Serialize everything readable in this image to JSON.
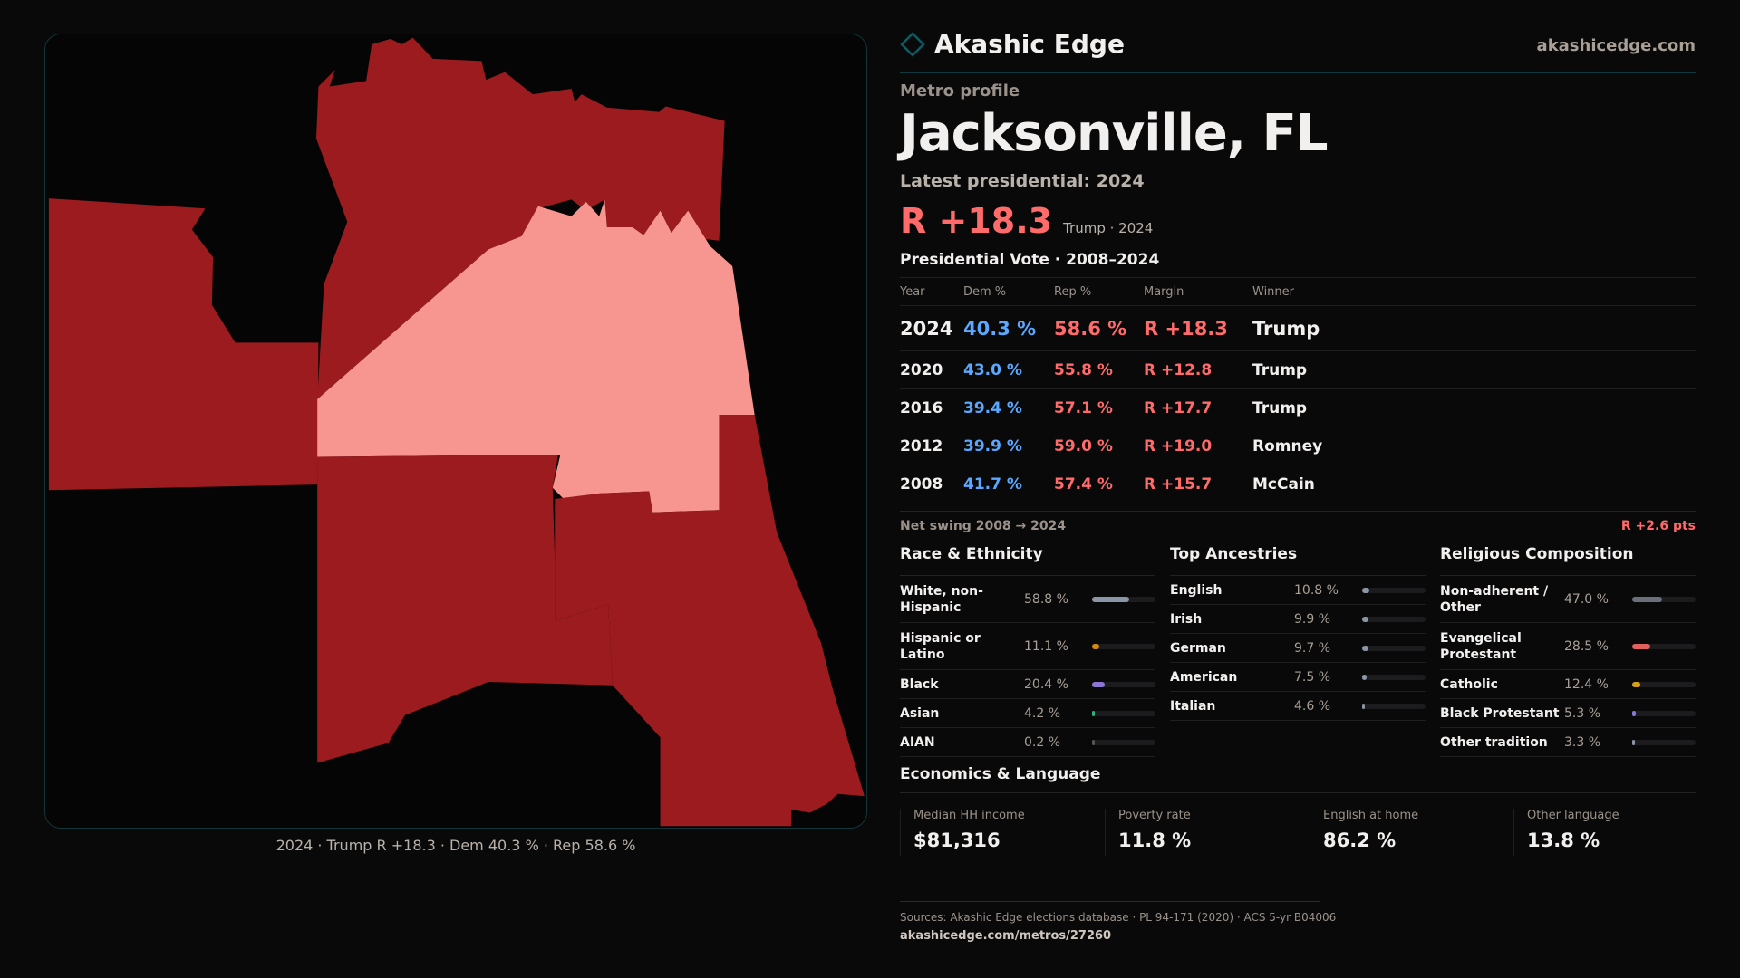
{
  "brand": {
    "name": "Akashic Edge",
    "site": "akashicedge.com"
  },
  "profile": {
    "eyebrow": "Metro profile",
    "title": "Jacksonville, FL",
    "latest_label": "Latest presidential: 2024",
    "margin": "R +18.3",
    "margin_sub": "Trump · 2024"
  },
  "map": {
    "caption": "2024 · Trump R +18.3 · Dem 40.3 % · Rep 58.6 %",
    "colors": {
      "strong_rep": "#9b1b1e",
      "lean_rep": "#f79591"
    }
  },
  "vote_table": {
    "title": "Presidential Vote · 2008–2024",
    "headers": [
      "Year",
      "Dem %",
      "Rep %",
      "Margin",
      "Winner"
    ],
    "rows": [
      {
        "year": "2024",
        "dem": "40.3 %",
        "rep": "58.6 %",
        "margin": "R +18.3",
        "winner": "Trump"
      },
      {
        "year": "2020",
        "dem": "43.0 %",
        "rep": "55.8 %",
        "margin": "R +12.8",
        "winner": "Trump"
      },
      {
        "year": "2016",
        "dem": "39.4 %",
        "rep": "57.1 %",
        "margin": "R +17.7",
        "winner": "Trump"
      },
      {
        "year": "2012",
        "dem": "39.9 %",
        "rep": "59.0 %",
        "margin": "R +19.0",
        "winner": "Romney"
      },
      {
        "year": "2008",
        "dem": "41.7 %",
        "rep": "57.4 %",
        "margin": "R +15.7",
        "winner": "McCain"
      }
    ],
    "swing_label": "Net swing 2008 → 2024",
    "swing_value": "R +2.6 pts"
  },
  "race": {
    "title": "Race & Ethnicity",
    "items": [
      {
        "label": "White, non-Hispanic",
        "value": "58.8 %",
        "pct": 58.8,
        "color": "#8a95a8"
      },
      {
        "label": "Hispanic or Latino",
        "value": "11.1 %",
        "pct": 11.1,
        "color": "#d4880f"
      },
      {
        "label": "Black",
        "value": "20.4 %",
        "pct": 20.4,
        "color": "#8b76d6"
      },
      {
        "label": "Asian",
        "value": "4.2 %",
        "pct": 4.2,
        "color": "#2fb37a"
      },
      {
        "label": "AIAN",
        "value": "0.2 %",
        "pct": 0.2,
        "color": "#555"
      }
    ]
  },
  "ancestry": {
    "title": "Top Ancestries",
    "items": [
      {
        "label": "English",
        "value": "10.8 %",
        "pct": 10.8,
        "color": "#8a95a8"
      },
      {
        "label": "Irish",
        "value": "9.9 %",
        "pct": 9.9,
        "color": "#8a95a8"
      },
      {
        "label": "German",
        "value": "9.7 %",
        "pct": 9.7,
        "color": "#8a95a8"
      },
      {
        "label": "American",
        "value": "7.5 %",
        "pct": 7.5,
        "color": "#8a95a8"
      },
      {
        "label": "Italian",
        "value": "4.6 %",
        "pct": 4.6,
        "color": "#8a95a8"
      }
    ]
  },
  "religion": {
    "title": "Religious Composition",
    "items": [
      {
        "label": "Non-adherent / Other",
        "value": "47.0 %",
        "pct": 47.0,
        "color": "#6b6f7a"
      },
      {
        "label": "Evangelical Protestant",
        "value": "28.5 %",
        "pct": 28.5,
        "color": "#e06060"
      },
      {
        "label": "Catholic",
        "value": "12.4 %",
        "pct": 12.4,
        "color": "#d4a017"
      },
      {
        "label": "Black Protestant",
        "value": "5.3 %",
        "pct": 5.3,
        "color": "#8b76d6"
      },
      {
        "label": "Other tradition",
        "value": "3.3 %",
        "pct": 3.3,
        "color": "#8a95a8"
      }
    ]
  },
  "economics": {
    "title": "Economics & Language",
    "stats": [
      {
        "label": "Median HH income",
        "value": "$81,316"
      },
      {
        "label": "Poverty rate",
        "value": "11.8 %"
      },
      {
        "label": "English at home",
        "value": "86.2 %"
      },
      {
        "label": "Other language",
        "value": "13.8 %"
      }
    ]
  },
  "footer": {
    "sources": "Sources: Akashic Edge elections database · PL 94-171 (2020) · ACS 5-yr B04006",
    "url": "akashicedge.com/metros/27260"
  }
}
